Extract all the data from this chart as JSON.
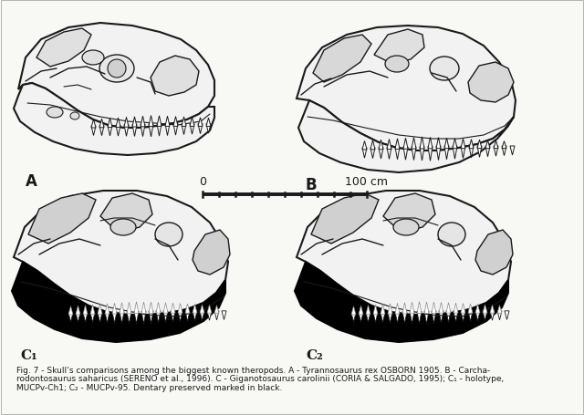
{
  "caption_line1": "Fig. 7 - Skull’s comparisons among the biggest known theropods. A - Tyrannosaurus rex OSBORN 1905. B - Carcha-",
  "caption_line2": "rodontosaurus saharicus (SERENO et al., 1996). C - Giganotosaurus carolinii (CORIA & SALGADO, 1995); C₁ - holotype,",
  "caption_line3": "MUCPv-Ch1; C₂ - MUCPv-95. Dentary preserved marked in black.",
  "label_A": "A",
  "label_B": "B",
  "label_C1": "C₁",
  "label_C2": "C₂",
  "scale_label_0": "0",
  "scale_label_100": "100 cm",
  "bg_color": "#f5f5f0",
  "line_color": "#1a1a1a",
  "fig_width": 6.4,
  "fig_height": 4.56
}
